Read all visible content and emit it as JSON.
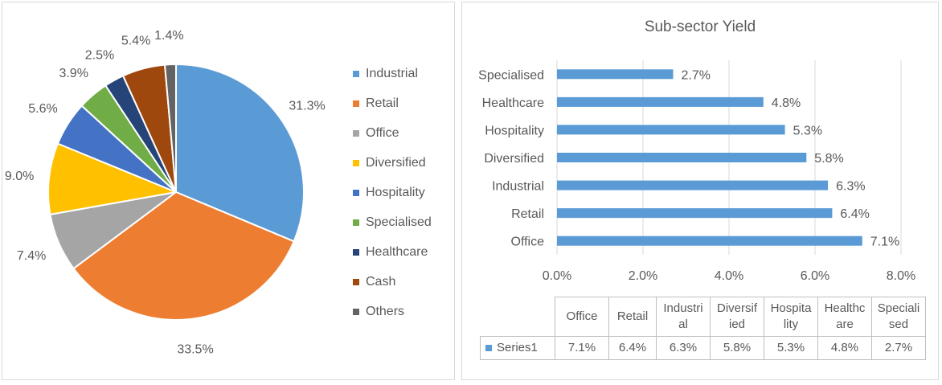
{
  "chart_data": [
    {
      "type": "pie",
      "categories": [
        "Industrial",
        "Retail",
        "Office",
        "Diversified",
        "Hospitality",
        "Specialised",
        "Healthcare",
        "Cash",
        "Others"
      ],
      "values": [
        31.3,
        33.5,
        7.4,
        9.0,
        5.6,
        3.9,
        2.5,
        5.4,
        1.4
      ],
      "data_labels": [
        "31.3%",
        "33.5%",
        "7.4%",
        "9.0%",
        "5.6%",
        "3.9%",
        "2.5%",
        "5.4%",
        "1.4%"
      ],
      "colors": [
        "#5b9bd5",
        "#ed7d31",
        "#a5a5a5",
        "#ffc000",
        "#4472c4",
        "#70ad47",
        "#264478",
        "#9e480e",
        "#636363"
      ],
      "legend_position": "right",
      "title": ""
    },
    {
      "type": "bar",
      "orientation": "horizontal",
      "title": "Sub-sector Yield",
      "categories": [
        "Office",
        "Retail",
        "Industrial",
        "Diversified",
        "Hospitality",
        "Healthcare",
        "Specialised"
      ],
      "series": [
        {
          "name": "Series1",
          "values": [
            7.1,
            6.4,
            6.3,
            5.8,
            5.3,
            4.8,
            2.7
          ],
          "color": "#5b9bd5"
        }
      ],
      "data_labels": [
        "7.1%",
        "6.4%",
        "6.3%",
        "5.8%",
        "5.3%",
        "4.8%",
        "2.7%"
      ],
      "xlim": [
        0,
        8
      ],
      "x_ticks": [
        "0.0%",
        "2.0%",
        "4.0%",
        "6.0%",
        "8.0%"
      ],
      "grid": true,
      "data_table": {
        "headers": [
          "Office",
          "Retail",
          "Industrial",
          "Diversified",
          "Hospitality",
          "Healthcare",
          "Specialised"
        ],
        "header_lines": [
          [
            "Office"
          ],
          [
            "Retail"
          ],
          [
            "Industri",
            "al"
          ],
          [
            "Diversif",
            "ied"
          ],
          [
            "Hospita",
            "lity"
          ],
          [
            "Healthc",
            "are"
          ],
          [
            "Speciali",
            "sed"
          ]
        ],
        "row_label": "Series1",
        "values": [
          "7.1%",
          "6.4%",
          "6.3%",
          "5.8%",
          "5.3%",
          "4.8%",
          "2.7%"
        ]
      }
    }
  ]
}
